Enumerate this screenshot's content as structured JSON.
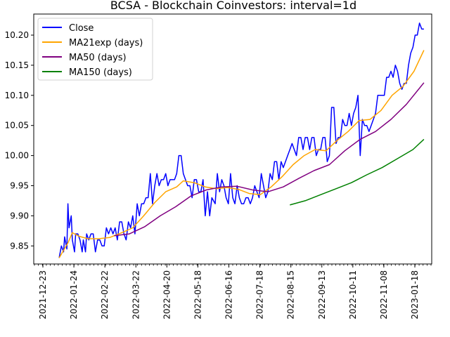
{
  "chart_data": {
    "type": "line",
    "title": "BCSA - Blockchain Coinvestors: interval=1d",
    "xlabel": "",
    "ylabel": "",
    "xlim": [
      "2021-12-23",
      "2022-01-20"
    ],
    "ylim": [
      9.82,
      10.235
    ],
    "grid": false,
    "legend_position": "top-left",
    "x_ticks": [
      "2021-12-23",
      "2022-01-24",
      "2022-02-22",
      "2022-03-22",
      "2022-04-20",
      "2022-05-18",
      "2022-06-16",
      "2022-07-18",
      "2022-08-15",
      "2022-09-13",
      "2022-10-11",
      "2022-11-08",
      "2023-01-18"
    ],
    "y_ticks": [
      "9.85",
      "9.90",
      "9.95",
      "10.00",
      "10.05",
      "10.10",
      "10.15",
      "10.20"
    ],
    "series": [
      {
        "name": "Close",
        "color": "#0000ff",
        "points": [
          [
            "2022-01-10",
            9.83
          ],
          [
            "2022-01-12",
            9.85
          ],
          [
            "2022-01-14",
            9.84
          ],
          [
            "2022-01-15",
            9.865
          ],
          [
            "2022-01-17",
            9.845
          ],
          [
            "2022-01-18",
            9.92
          ],
          [
            "2022-01-19",
            9.88
          ],
          [
            "2022-01-21",
            9.9
          ],
          [
            "2022-01-22",
            9.86
          ],
          [
            "2022-01-24",
            9.84
          ],
          [
            "2022-01-25",
            9.87
          ],
          [
            "2022-01-27",
            9.87
          ],
          [
            "2022-01-29",
            9.86
          ],
          [
            "2022-01-31",
            9.84
          ],
          [
            "2022-02-01",
            9.86
          ],
          [
            "2022-02-03",
            9.84
          ],
          [
            "2022-02-04",
            9.87
          ],
          [
            "2022-02-06",
            9.86
          ],
          [
            "2022-02-08",
            9.87
          ],
          [
            "2022-02-10",
            9.87
          ],
          [
            "2022-02-12",
            9.84
          ],
          [
            "2022-02-14",
            9.86
          ],
          [
            "2022-02-16",
            9.86
          ],
          [
            "2022-02-18",
            9.85
          ],
          [
            "2022-02-20",
            9.85
          ],
          [
            "2022-02-22",
            9.88
          ],
          [
            "2022-02-24",
            9.87
          ],
          [
            "2022-02-26",
            9.88
          ],
          [
            "2022-02-28",
            9.87
          ],
          [
            "2022-03-02",
            9.88
          ],
          [
            "2022-03-04",
            9.86
          ],
          [
            "2022-03-06",
            9.89
          ],
          [
            "2022-03-08",
            9.89
          ],
          [
            "2022-03-10",
            9.87
          ],
          [
            "2022-03-12",
            9.86
          ],
          [
            "2022-03-14",
            9.89
          ],
          [
            "2022-03-16",
            9.88
          ],
          [
            "2022-03-18",
            9.9
          ],
          [
            "2022-03-20",
            9.87
          ],
          [
            "2022-03-22",
            9.92
          ],
          [
            "2022-03-24",
            9.9
          ],
          [
            "2022-03-26",
            9.92
          ],
          [
            "2022-03-28",
            9.92
          ],
          [
            "2022-03-30",
            9.93
          ],
          [
            "2022-04-01",
            9.93
          ],
          [
            "2022-04-03",
            9.97
          ],
          [
            "2022-04-05",
            9.92
          ],
          [
            "2022-04-07",
            9.95
          ],
          [
            "2022-04-09",
            9.97
          ],
          [
            "2022-04-11",
            9.95
          ],
          [
            "2022-04-13",
            9.96
          ],
          [
            "2022-04-15",
            9.96
          ],
          [
            "2022-04-17",
            9.97
          ],
          [
            "2022-04-19",
            9.95
          ],
          [
            "2022-04-21",
            9.96
          ],
          [
            "2022-04-23",
            9.96
          ],
          [
            "2022-04-25",
            9.96
          ],
          [
            "2022-04-27",
            9.97
          ],
          [
            "2022-04-29",
            10.0
          ],
          [
            "2022-05-01",
            10.0
          ],
          [
            "2022-05-03",
            9.97
          ],
          [
            "2022-05-05",
            9.96
          ],
          [
            "2022-05-07",
            9.95
          ],
          [
            "2022-05-09",
            9.95
          ],
          [
            "2022-05-11",
            9.93
          ],
          [
            "2022-05-13",
            9.96
          ],
          [
            "2022-05-15",
            9.96
          ],
          [
            "2022-05-17",
            9.94
          ],
          [
            "2022-05-19",
            9.94
          ],
          [
            "2022-05-21",
            9.96
          ],
          [
            "2022-05-23",
            9.9
          ],
          [
            "2022-05-25",
            9.94
          ],
          [
            "2022-05-27",
            9.9
          ],
          [
            "2022-05-29",
            9.93
          ],
          [
            "2022-06-01",
            9.92
          ],
          [
            "2022-06-03",
            9.97
          ],
          [
            "2022-06-05",
            9.94
          ],
          [
            "2022-06-07",
            9.96
          ],
          [
            "2022-06-09",
            9.95
          ],
          [
            "2022-06-11",
            9.93
          ],
          [
            "2022-06-13",
            9.92
          ],
          [
            "2022-06-15",
            9.97
          ],
          [
            "2022-06-17",
            9.93
          ],
          [
            "2022-06-19",
            9.92
          ],
          [
            "2022-06-21",
            9.95
          ],
          [
            "2022-06-23",
            9.93
          ],
          [
            "2022-06-25",
            9.92
          ],
          [
            "2022-06-27",
            9.92
          ],
          [
            "2022-06-29",
            9.93
          ],
          [
            "2022-07-01",
            9.93
          ],
          [
            "2022-07-03",
            9.92
          ],
          [
            "2022-07-05",
            9.93
          ],
          [
            "2022-07-07",
            9.95
          ],
          [
            "2022-07-09",
            9.94
          ],
          [
            "2022-07-11",
            9.93
          ],
          [
            "2022-07-13",
            9.97
          ],
          [
            "2022-07-15",
            9.95
          ],
          [
            "2022-07-17",
            9.93
          ],
          [
            "2022-07-19",
            9.94
          ],
          [
            "2022-07-21",
            9.97
          ],
          [
            "2022-07-23",
            9.96
          ],
          [
            "2022-07-25",
            9.99
          ],
          [
            "2022-07-27",
            9.99
          ],
          [
            "2022-07-29",
            9.96
          ],
          [
            "2022-07-31",
            9.99
          ],
          [
            "2022-08-02",
            9.98
          ],
          [
            "2022-08-04",
            9.99
          ],
          [
            "2022-08-06",
            10.0
          ],
          [
            "2022-08-08",
            10.01
          ],
          [
            "2022-08-10",
            10.02
          ],
          [
            "2022-08-12",
            10.01
          ],
          [
            "2022-08-14",
            10.0
          ],
          [
            "2022-08-16",
            10.03
          ],
          [
            "2022-08-18",
            10.03
          ],
          [
            "2022-08-20",
            10.01
          ],
          [
            "2022-08-22",
            10.03
          ],
          [
            "2022-08-24",
            10.03
          ],
          [
            "2022-08-26",
            10.01
          ],
          [
            "2022-08-28",
            10.03
          ],
          [
            "2022-08-30",
            10.03
          ],
          [
            "2022-09-01",
            10.0
          ],
          [
            "2022-09-03",
            10.01
          ],
          [
            "2022-09-05",
            10.01
          ],
          [
            "2022-09-07",
            10.03
          ],
          [
            "2022-09-09",
            10.03
          ],
          [
            "2022-09-11",
            9.99
          ],
          [
            "2022-09-13",
            10.0
          ],
          [
            "2022-09-15",
            10.08
          ],
          [
            "2022-09-17",
            10.08
          ],
          [
            "2022-09-19",
            10.02
          ],
          [
            "2022-09-21",
            10.03
          ],
          [
            "2022-09-23",
            10.03
          ],
          [
            "2022-09-25",
            10.06
          ],
          [
            "2022-09-27",
            10.05
          ],
          [
            "2022-09-29",
            10.05
          ],
          [
            "2022-10-01",
            10.07
          ],
          [
            "2022-10-03",
            10.05
          ],
          [
            "2022-10-05",
            10.07
          ],
          [
            "2022-10-07",
            10.08
          ],
          [
            "2022-10-09",
            10.1
          ],
          [
            "2022-10-11",
            10.0
          ],
          [
            "2022-10-13",
            10.06
          ],
          [
            "2022-10-15",
            10.05
          ],
          [
            "2022-10-17",
            10.05
          ],
          [
            "2022-10-19",
            10.04
          ],
          [
            "2022-10-21",
            10.05
          ],
          [
            "2022-10-23",
            10.06
          ],
          [
            "2022-10-25",
            10.07
          ],
          [
            "2022-10-27",
            10.1
          ],
          [
            "2022-10-29",
            10.1
          ],
          [
            "2022-10-31",
            10.1
          ],
          [
            "2022-11-02",
            10.1
          ],
          [
            "2022-11-04",
            10.13
          ],
          [
            "2022-11-06",
            10.13
          ],
          [
            "2022-11-08",
            10.14
          ],
          [
            "2022-11-10",
            10.13
          ],
          [
            "2022-11-12",
            10.15
          ],
          [
            "2022-11-14",
            10.14
          ],
          [
            "2022-11-16",
            10.12
          ],
          [
            "2022-11-18",
            10.11
          ],
          [
            "2022-11-20",
            10.12
          ],
          [
            "2022-11-22",
            10.12
          ],
          [
            "2022-11-24",
            10.15
          ],
          [
            "2022-11-26",
            10.17
          ],
          [
            "2022-11-28",
            10.18
          ],
          [
            "2022-11-30",
            10.2
          ],
          [
            "2022-12-02",
            10.2
          ],
          [
            "2022-12-04",
            10.22
          ],
          [
            "2022-12-06",
            10.21
          ],
          [
            "2022-12-08",
            10.21
          ]
        ]
      },
      {
        "name": "MA21exp (days)",
        "color": "#ffa500",
        "points": [
          [
            "2022-01-10",
            9.83
          ],
          [
            "2022-01-18",
            9.855
          ],
          [
            "2022-01-22",
            9.872
          ],
          [
            "2022-01-28",
            9.866
          ],
          [
            "2022-02-05",
            9.862
          ],
          [
            "2022-02-15",
            9.862
          ],
          [
            "2022-02-25",
            9.864
          ],
          [
            "2022-03-08",
            9.872
          ],
          [
            "2022-03-18",
            9.88
          ],
          [
            "2022-03-28",
            9.9
          ],
          [
            "2022-04-07",
            9.922
          ],
          [
            "2022-04-17",
            9.94
          ],
          [
            "2022-04-27",
            9.948
          ],
          [
            "2022-05-03",
            9.958
          ],
          [
            "2022-05-13",
            9.955
          ],
          [
            "2022-05-23",
            9.948
          ],
          [
            "2022-06-02",
            9.945
          ],
          [
            "2022-06-12",
            9.947
          ],
          [
            "2022-06-22",
            9.944
          ],
          [
            "2022-07-02",
            9.937
          ],
          [
            "2022-07-12",
            9.935
          ],
          [
            "2022-07-22",
            9.948
          ],
          [
            "2022-08-01",
            9.965
          ],
          [
            "2022-08-11",
            9.985
          ],
          [
            "2022-08-21",
            10.0
          ],
          [
            "2022-08-31",
            10.01
          ],
          [
            "2022-09-10",
            10.008
          ],
          [
            "2022-09-20",
            10.025
          ],
          [
            "2022-09-30",
            10.04
          ],
          [
            "2022-10-10",
            10.058
          ],
          [
            "2022-10-20",
            10.06
          ],
          [
            "2022-10-30",
            10.075
          ],
          [
            "2022-11-09",
            10.1
          ],
          [
            "2022-11-19",
            10.115
          ],
          [
            "2022-11-29",
            10.14
          ],
          [
            "2022-12-08",
            10.175
          ]
        ]
      },
      {
        "name": "MA50 (days)",
        "color": "#800080",
        "points": [
          [
            "2022-03-01",
            9.867
          ],
          [
            "2022-03-15",
            9.87
          ],
          [
            "2022-03-29",
            9.882
          ],
          [
            "2022-04-12",
            9.9
          ],
          [
            "2022-04-26",
            9.915
          ],
          [
            "2022-05-10",
            9.933
          ],
          [
            "2022-05-24",
            9.943
          ],
          [
            "2022-06-07",
            9.948
          ],
          [
            "2022-06-21",
            9.949
          ],
          [
            "2022-07-05",
            9.943
          ],
          [
            "2022-07-19",
            9.94
          ],
          [
            "2022-08-02",
            9.948
          ],
          [
            "2022-08-16",
            9.962
          ],
          [
            "2022-08-30",
            9.975
          ],
          [
            "2022-09-13",
            9.985
          ],
          [
            "2022-09-27",
            10.008
          ],
          [
            "2022-10-11",
            10.027
          ],
          [
            "2022-10-25",
            10.04
          ],
          [
            "2022-11-08",
            10.06
          ],
          [
            "2022-11-22",
            10.085
          ],
          [
            "2022-12-08",
            10.121
          ]
        ]
      },
      {
        "name": "MA150 (days)",
        "color": "#008000",
        "points": [
          [
            "2022-08-08",
            9.918
          ],
          [
            "2022-08-22",
            9.925
          ],
          [
            "2022-09-05",
            9.935
          ],
          [
            "2022-09-19",
            9.945
          ],
          [
            "2022-10-03",
            9.955
          ],
          [
            "2022-10-17",
            9.968
          ],
          [
            "2022-10-31",
            9.98
          ],
          [
            "2022-11-14",
            9.995
          ],
          [
            "2022-11-28",
            10.01
          ],
          [
            "2022-12-08",
            10.027
          ]
        ]
      }
    ]
  }
}
